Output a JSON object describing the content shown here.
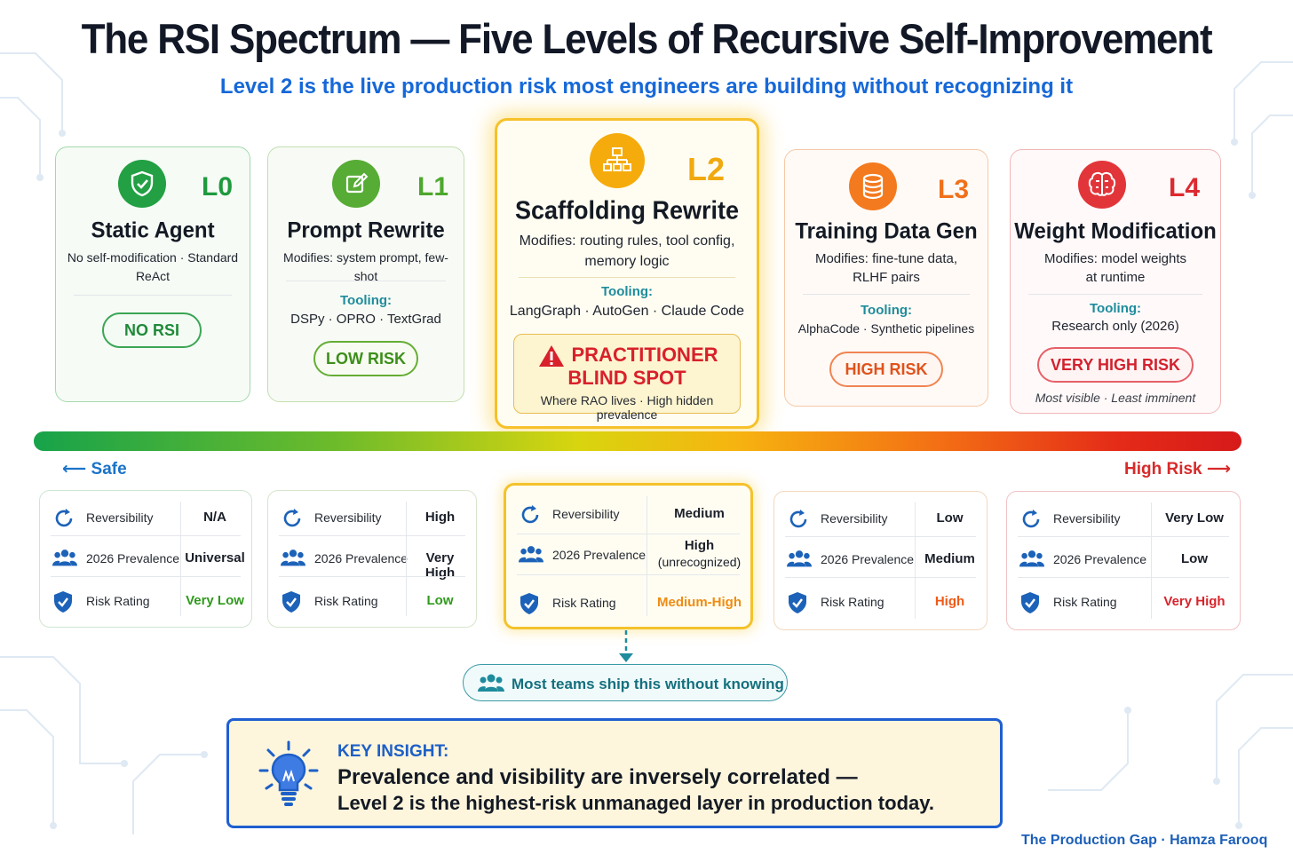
{
  "title": "The RSI Spectrum — Five Levels of Recursive Self-Improvement",
  "subtitle": "Level 2 is the live production risk most engineers are building without recognizing it",
  "levels": [
    {
      "level": "L0",
      "name": "Static Agent",
      "modifies": "No self-modification · Standard ReAct",
      "risk": "NO RSI",
      "color": "#1f9a3e",
      "icon": "shield-check-icon"
    },
    {
      "level": "L1",
      "name": "Prompt Rewrite",
      "modifies": "Modifies: system prompt, few-shot",
      "tooling_label": "Tooling:",
      "tooling": "DSPy · OPRO · TextGrad",
      "risk": "LOW RISK",
      "color": "#4ea72e",
      "icon": "edit-icon"
    },
    {
      "level": "L2",
      "name": "Scaffolding Rewrite",
      "modifies_line1": "Modifies: routing rules, tool config,",
      "modifies_line2": "memory logic",
      "tooling_label": "Tooling:",
      "tooling": "LangGraph · AutoGen · Claude Code",
      "blind_line1": "PRACTITIONER",
      "blind_line2": "BLIND SPOT",
      "blind_sub": "Where RAO lives · High hidden prevalence",
      "color": "#f0a90e",
      "icon": "hierarchy-icon"
    },
    {
      "level": "L3",
      "name": "Training Data Gen",
      "modifies_line1": "Modifies: fine-tune data,",
      "modifies_line2": "RLHF pairs",
      "tooling_label": "Tooling:",
      "tooling": "AlphaCode · Synthetic pipelines",
      "risk": "HIGH RISK",
      "color": "#f0701b",
      "icon": "database-icon"
    },
    {
      "level": "L4",
      "name": "Weight Modification",
      "modifies_line1": "Modifies: model weights",
      "modifies_line2": "at runtime",
      "tooling_label": "Tooling:",
      "tooling": "Research only (2026)",
      "risk": "VERY HIGH RISK",
      "footnote": "Most visible · Least imminent",
      "color": "#dd2930",
      "icon": "brain-icon"
    }
  ],
  "spectrum": {
    "left_label": "Safe",
    "right_label": "High Risk"
  },
  "metric_labels": {
    "reversibility": "Reversibility",
    "prevalence": "2026 Prevalence",
    "risk": "Risk Rating"
  },
  "metrics": [
    {
      "reversibility": "N/A",
      "prevalence": "Universal",
      "risk": "Very Low",
      "risk_color": "#2f9a1c"
    },
    {
      "reversibility": "High",
      "prevalence": "Very High",
      "risk": "Low",
      "risk_color": "#2f9a1c"
    },
    {
      "reversibility": "Medium",
      "prevalence_line1": "High",
      "prevalence_line2": "(unrecognized)",
      "risk": "Medium-High",
      "risk_color": "#ef8c12"
    },
    {
      "reversibility": "Low",
      "prevalence": "Medium",
      "risk": "High",
      "risk_color": "#ee5a18"
    },
    {
      "reversibility": "Very Low",
      "prevalence": "Low",
      "risk": "Very High",
      "risk_color": "#d8242c"
    }
  ],
  "callout": "Most teams ship this without knowing",
  "insight": {
    "label": "KEY INSIGHT:",
    "line1": "Prevalence and visibility are inversely correlated —",
    "line2": "Level 2 is the highest-risk unmanaged layer in production today."
  },
  "credit": "The Production Gap · Hamza Farooq",
  "colors": {
    "teal": "#1e8c9c",
    "blue": "#1668d8",
    "navy": "#1f5fd1"
  }
}
